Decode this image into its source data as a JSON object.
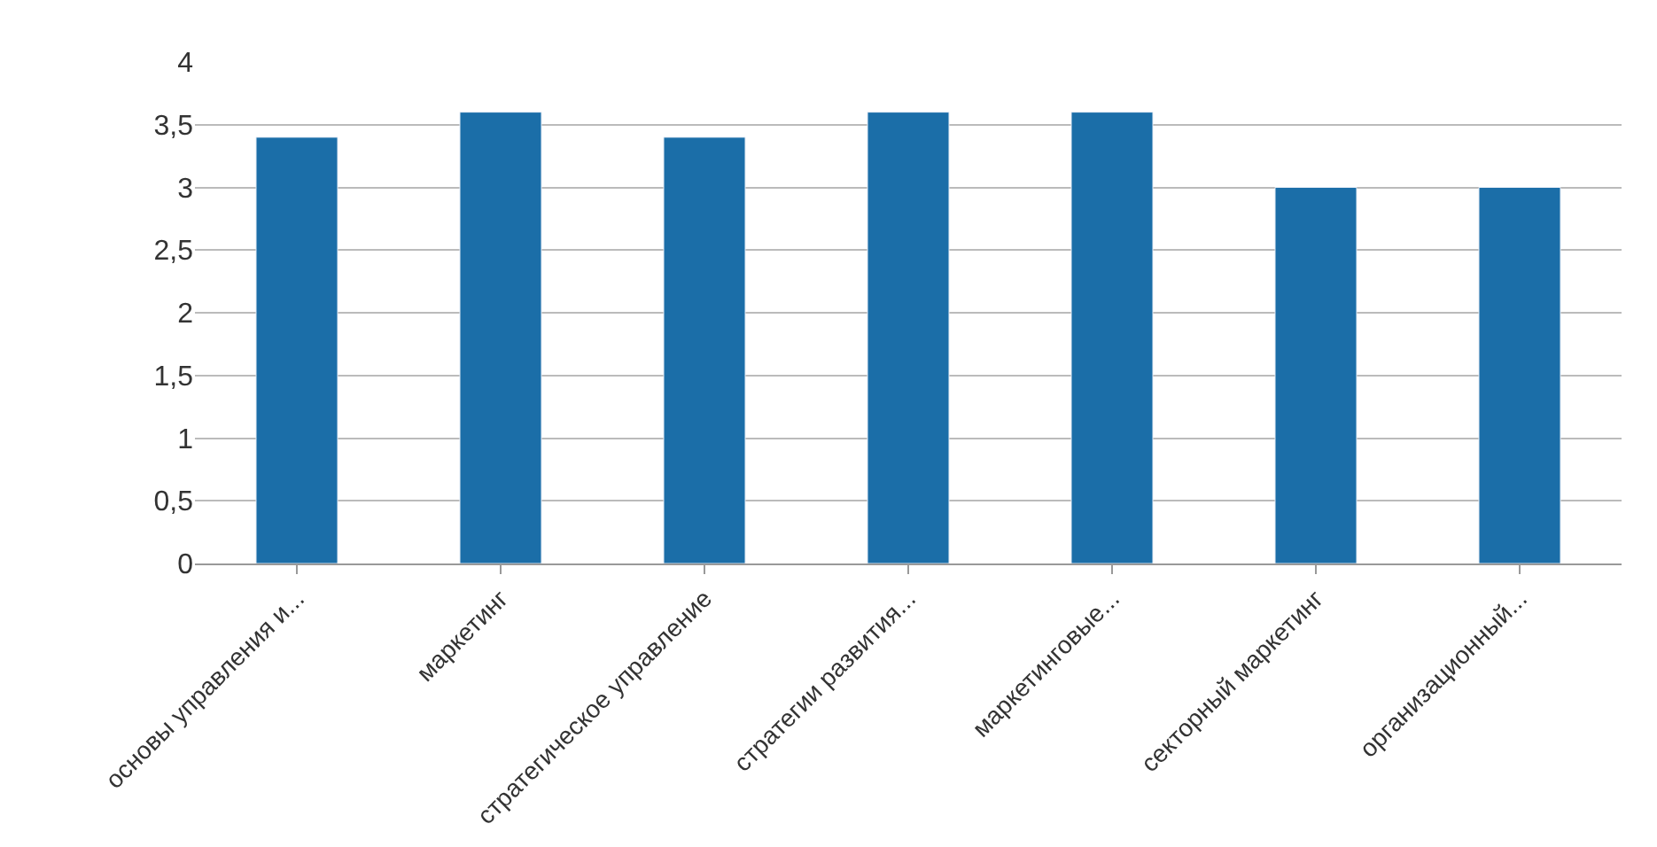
{
  "chart_data": {
    "type": "bar",
    "categories": [
      "основы управления и...",
      "маркетинг",
      "стратегическое управление",
      "стратегии развития...",
      "маркетинговые...",
      "секторный маркетинг",
      "организационный..."
    ],
    "values": [
      3.4,
      3.6,
      3.4,
      3.6,
      3.6,
      3.0,
      3.0
    ],
    "color": "#1b6ea8",
    "ylim": [
      0,
      4
    ],
    "yticks": [
      0,
      {
        "value": 0.5,
        "label": "0,5"
      },
      1,
      {
        "value": 1.5,
        "label": "1,5"
      },
      2,
      {
        "value": 2.5,
        "label": "2,5"
      },
      3,
      {
        "value": 3.5,
        "label": "3,5"
      },
      4
    ],
    "grid": "y",
    "legend": false
  }
}
